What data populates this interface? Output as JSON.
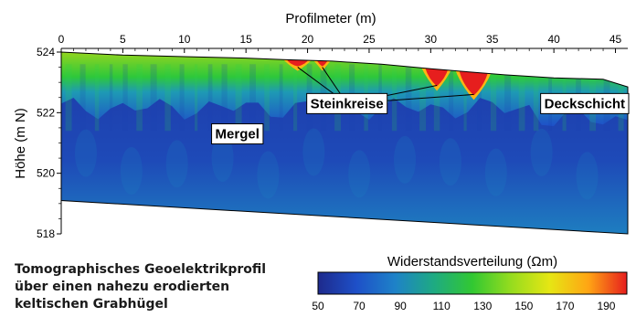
{
  "chart_data": {
    "type": "heatmap",
    "xlabel": "Profilmeter (m)",
    "ylabel": "Höhe (m N)",
    "xlim": [
      0,
      46
    ],
    "ylim": [
      518,
      524
    ],
    "x_ticks": [
      0,
      5,
      10,
      15,
      20,
      25,
      30,
      35,
      40,
      45
    ],
    "y_ticks": [
      524,
      522,
      520,
      518
    ],
    "surface_profile": {
      "x": [
        0,
        5,
        10,
        15,
        18,
        22,
        26,
        30,
        33,
        36,
        40,
        44,
        46
      ],
      "y": [
        524.0,
        523.9,
        523.85,
        523.8,
        523.75,
        523.7,
        523.6,
        523.45,
        523.35,
        523.25,
        523.15,
        523.1,
        522.85
      ]
    },
    "lower_boundary": {
      "x": [
        0,
        46
      ],
      "y": [
        519.1,
        518.0
      ]
    },
    "annotations": [
      {
        "text": "Steinkreise",
        "x": 23.2,
        "y": 522.3,
        "points_to": [
          [
            19.2,
            523.5
          ],
          [
            21.2,
            523.5
          ],
          [
            30.5,
            522.9
          ],
          [
            33.5,
            522.6
          ]
        ]
      },
      {
        "text": "Deckschicht",
        "x": 42.5,
        "y": 522.3
      },
      {
        "text": "Mergel",
        "x": 14.3,
        "y": 521.3
      }
    ],
    "colorbar": {
      "title": "Widerstandsverteilung (Ωm)",
      "ticks": [
        50,
        70,
        90,
        110,
        130,
        150,
        170,
        190
      ],
      "range": [
        50,
        200
      ],
      "colors": [
        "#1e2a8c",
        "#1e50c8",
        "#1e82c8",
        "#1eaa82",
        "#32c832",
        "#96dc1e",
        "#e6e614",
        "#ffa514",
        "#e61e1e"
      ]
    },
    "regions": [
      {
        "name": "Mergel",
        "resistivity_ohm_m": 60
      },
      {
        "name": "Deckschicht",
        "resistivity_ohm_m": 130
      },
      {
        "name": "Steinkreise",
        "resistivity_ohm_m": 200
      }
    ]
  },
  "caption": {
    "lines": [
      "Tomographisches Geoelektrikprofil",
      "über einen nahezu erodierten",
      "keltischen Grabhügel"
    ]
  }
}
